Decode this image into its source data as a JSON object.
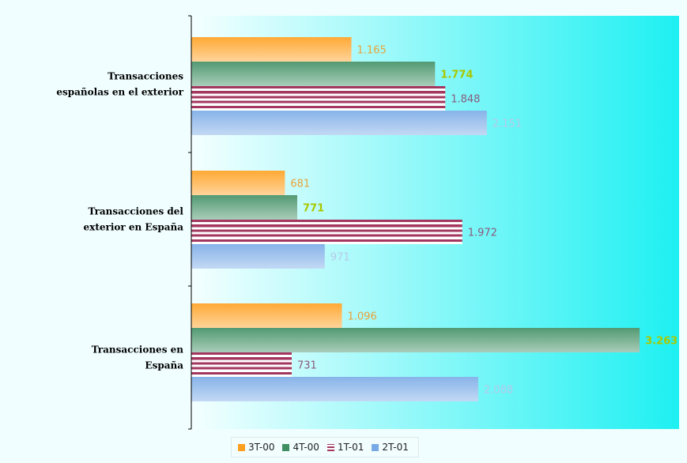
{
  "chart_data": {
    "type": "bar",
    "orientation": "horizontal",
    "categories": [
      "Transacciones españolas en el exterior",
      "Transacciones del exterior en España",
      "Transacciones en España"
    ],
    "category_label_lines": [
      [
        "Transacciones",
        "españolas en el exterior"
      ],
      [
        "Transacciones del",
        "exterior en España"
      ],
      [
        "Transacciones en",
        "España"
      ]
    ],
    "series": [
      {
        "name": "3T-00",
        "values": [
          1165,
          681,
          1096
        ],
        "labels": [
          "1.165",
          "681",
          "1.096"
        ],
        "color": "#ff9f1f",
        "label_color": "#e8a33a"
      },
      {
        "name": "4T-00",
        "values": [
          1774,
          771,
          3263
        ],
        "labels": [
          "1.774",
          "771",
          "3.263"
        ],
        "color": "#3f8f63",
        "label_color": "#a9c800"
      },
      {
        "name": "1T-01",
        "values": [
          1848,
          1972,
          731
        ],
        "labels": [
          "1.848",
          "1.972",
          "731"
        ],
        "color": "#a3375f",
        "label_color": "#8a5a7c"
      },
      {
        "name": "2T-01",
        "values": [
          2151,
          971,
          2088
        ],
        "labels": [
          "2.151",
          "971",
          "2.088"
        ],
        "color": "#7aaae6",
        "label_color": "#b5cae8"
      }
    ],
    "xlim": [
      0,
      3550
    ],
    "legend_position": "bottom",
    "grid": false,
    "background": "#1ef0f2"
  }
}
